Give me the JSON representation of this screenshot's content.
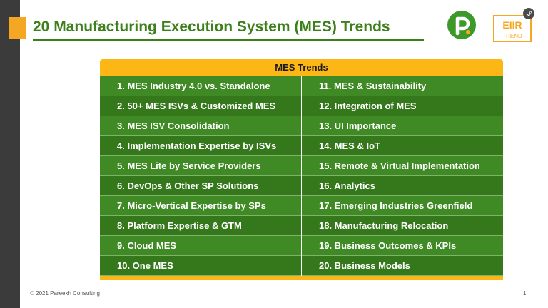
{
  "header": {
    "title": "20 Manufacturing Execution System (MES) Trends",
    "accent_color": "#3d7f1b",
    "marker_color": "#f5a623"
  },
  "logos": {
    "eiir_text": "EIIR",
    "trend_text": "TREND",
    "version_badge": "4.0"
  },
  "table": {
    "header": "MES Trends",
    "header_color": "#fcb615",
    "row_color": "#3f8a24",
    "left_column": [
      "1. MES Industry 4.0 vs. Standalone",
      "2. 50+ MES ISVs & Customized MES",
      "3. MES ISV Consolidation",
      "4. Implementation Expertise by ISVs",
      "5. MES Lite by Service Providers",
      "6. DevOps & Other SP Solutions",
      "7. Micro-Vertical Expertise by  SPs",
      "8. Platform Expertise & GTM",
      "9. Cloud MES",
      "10. One MES"
    ],
    "right_column": [
      "11. MES & Sustainability",
      "12. Integration of MES",
      "13. UI Importance",
      "14. MES  & IoT",
      "15. Remote & Virtual Implementation",
      "16. Analytics",
      "17. Emerging Industries Greenfield",
      "18. Manufacturing Relocation",
      "19. Business Outcomes & KPIs",
      "20. Business Models"
    ]
  },
  "footer": {
    "copyright": "© 2021 Pareekh Consulting",
    "page_number": "1"
  }
}
